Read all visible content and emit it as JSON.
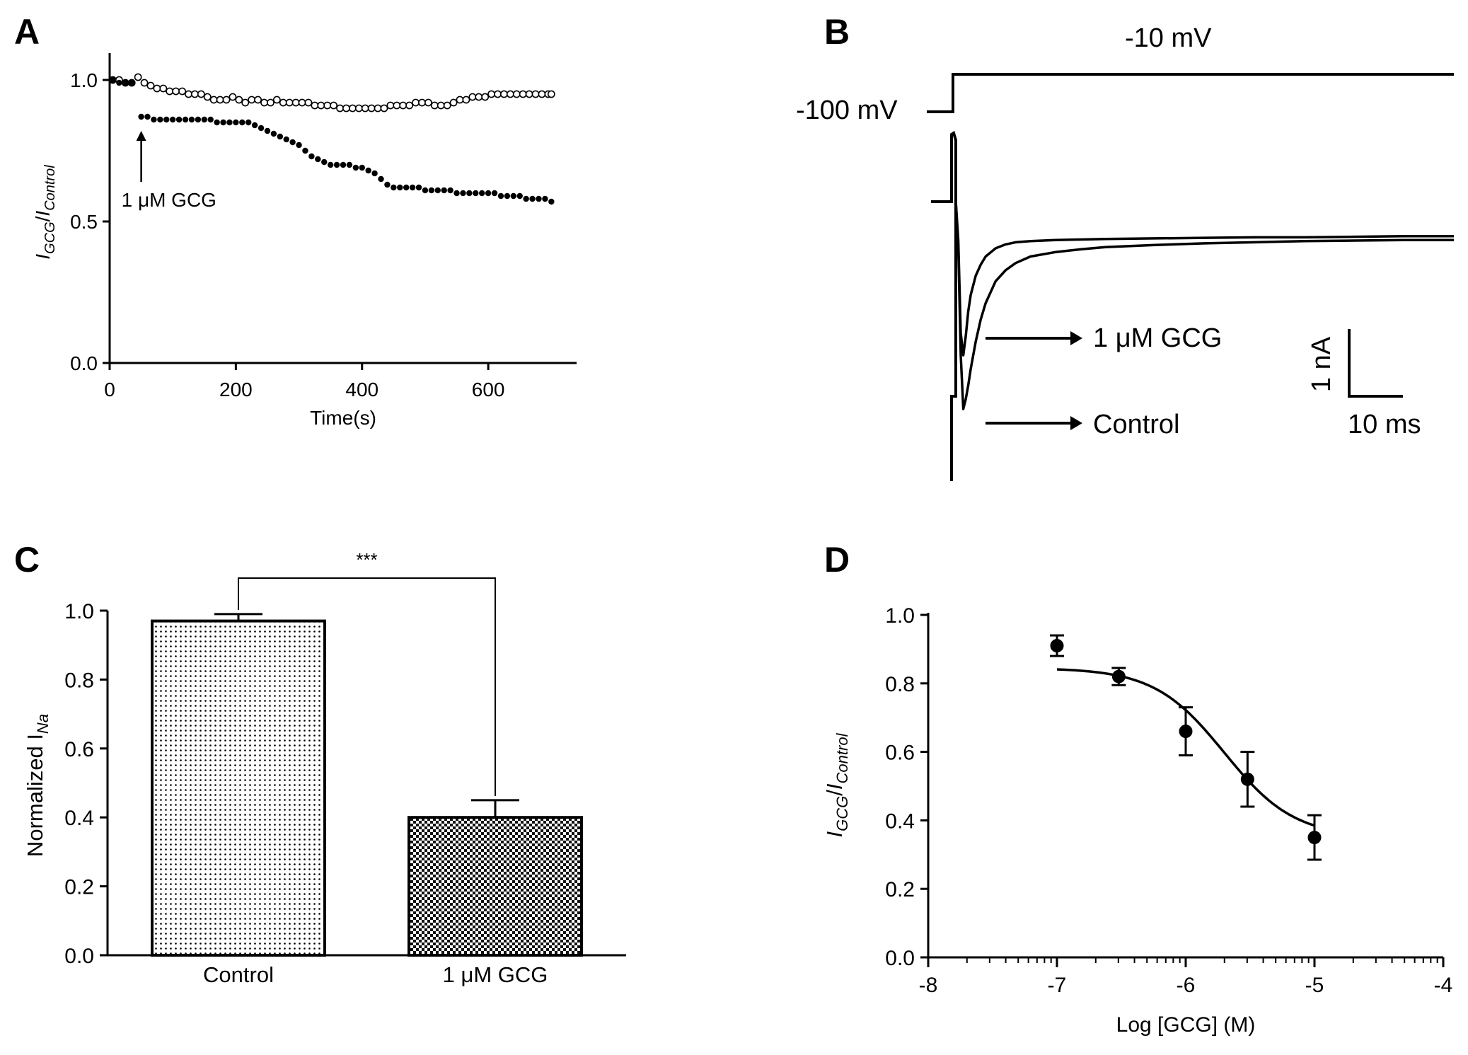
{
  "figure": {
    "panels": [
      {
        "letter": "A",
        "chart_data": {
          "type": "scatter",
          "xlabel": "Time(s)",
          "ylabel": {
            "base1": "I",
            "sub1": "GCG",
            "sep": "/",
            "base2": "I",
            "sub2": "Control"
          },
          "xlim": [
            0,
            740
          ],
          "ylim": [
            0,
            1.0
          ],
          "xticks": [
            0,
            200,
            400,
            600
          ],
          "xtick_labels": [
            "0",
            "200",
            "400",
            "600"
          ],
          "yticks": [
            0.0,
            0.5,
            1.0
          ],
          "ytick_labels": [
            "0.0",
            "0.5",
            "1.0"
          ],
          "annotation": {
            "label": "1 μM GCG",
            "x": 50,
            "y_head": 0.82,
            "y_tail": 0.64
          },
          "series": [
            {
              "marker": "open-circle",
              "x": [
                5,
                15,
                25,
                35,
                45,
                55,
                65,
                75,
                85,
                95,
                105,
                115,
                125,
                135,
                145,
                155,
                165,
                175,
                185,
                195,
                205,
                215,
                225,
                235,
                245,
                255,
                265,
                275,
                285,
                295,
                305,
                315,
                325,
                335,
                345,
                355,
                365,
                375,
                385,
                395,
                405,
                415,
                425,
                435,
                445,
                455,
                465,
                475,
                485,
                495,
                505,
                515,
                525,
                535,
                545,
                555,
                565,
                575,
                585,
                595,
                605,
                615,
                625,
                635,
                645,
                655,
                665,
                675,
                685,
                695,
                700
              ],
              "y": [
                1.0,
                1.0,
                0.99,
                0.99,
                1.01,
                0.99,
                0.98,
                0.97,
                0.97,
                0.96,
                0.96,
                0.96,
                0.95,
                0.95,
                0.95,
                0.94,
                0.93,
                0.93,
                0.93,
                0.94,
                0.93,
                0.92,
                0.93,
                0.93,
                0.92,
                0.92,
                0.93,
                0.92,
                0.92,
                0.92,
                0.92,
                0.92,
                0.91,
                0.91,
                0.91,
                0.91,
                0.9,
                0.9,
                0.9,
                0.9,
                0.9,
                0.9,
                0.9,
                0.9,
                0.91,
                0.91,
                0.91,
                0.91,
                0.92,
                0.92,
                0.92,
                0.91,
                0.91,
                0.91,
                0.92,
                0.93,
                0.93,
                0.94,
                0.94,
                0.94,
                0.95,
                0.95,
                0.95,
                0.95,
                0.95,
                0.95,
                0.95,
                0.95,
                0.95,
                0.95,
                0.95
              ]
            },
            {
              "marker": "filled-circle",
              "x": [
                5,
                15,
                25,
                35,
                50,
                60,
                70,
                80,
                90,
                100,
                110,
                120,
                130,
                140,
                150,
                160,
                170,
                180,
                190,
                200,
                210,
                220,
                230,
                240,
                250,
                260,
                270,
                280,
                290,
                300,
                310,
                320,
                330,
                340,
                350,
                360,
                370,
                380,
                390,
                400,
                410,
                420,
                430,
                440,
                450,
                460,
                470,
                480,
                490,
                500,
                510,
                520,
                530,
                540,
                550,
                560,
                570,
                580,
                590,
                600,
                610,
                620,
                630,
                640,
                650,
                660,
                670,
                680,
                690,
                700
              ],
              "y": [
                1.0,
                0.99,
                0.99,
                0.99,
                0.87,
                0.87,
                0.86,
                0.86,
                0.86,
                0.86,
                0.86,
                0.86,
                0.86,
                0.86,
                0.86,
                0.86,
                0.85,
                0.85,
                0.85,
                0.85,
                0.85,
                0.85,
                0.84,
                0.83,
                0.82,
                0.81,
                0.8,
                0.79,
                0.78,
                0.77,
                0.75,
                0.73,
                0.72,
                0.71,
                0.7,
                0.7,
                0.7,
                0.7,
                0.69,
                0.69,
                0.68,
                0.67,
                0.65,
                0.63,
                0.62,
                0.62,
                0.62,
                0.62,
                0.62,
                0.61,
                0.61,
                0.61,
                0.61,
                0.61,
                0.6,
                0.6,
                0.6,
                0.6,
                0.6,
                0.6,
                0.6,
                0.59,
                0.59,
                0.59,
                0.59,
                0.58,
                0.58,
                0.58,
                0.58,
                0.57
              ]
            }
          ]
        }
      },
      {
        "letter": "B",
        "chart_data": {
          "type": "line",
          "protocol": {
            "hold_label": "-100 mV",
            "step_label": "-10 mV"
          },
          "trace_labels": [
            "1 μM GCG",
            "Control"
          ],
          "scale_bar": {
            "current": "1 nA",
            "time": "10 ms"
          },
          "time_ms": [
            0,
            0.5,
            1,
            1.5,
            2,
            2.5,
            3,
            4,
            5,
            6,
            8,
            10,
            12,
            15,
            20,
            25,
            30,
            40,
            50,
            60,
            70,
            80,
            90,
            100
          ],
          "series": [
            {
              "name": "1 μM GCG",
              "current_nA": [
                0.0,
                -0.7,
                -2.4,
                -2.8,
                -2.45,
                -2.0,
                -1.7,
                -1.35,
                -1.15,
                -1.0,
                -0.85,
                -0.78,
                -0.74,
                -0.72,
                -0.7,
                -0.69,
                -0.68,
                -0.67,
                -0.66,
                -0.65,
                -0.65,
                -0.64,
                -0.63,
                -0.63
              ]
            },
            {
              "name": "Control",
              "current_nA": [
                0.0,
                -0.8,
                -2.8,
                -3.78,
                -3.6,
                -3.35,
                -3.05,
                -2.55,
                -2.15,
                -1.85,
                -1.45,
                -1.25,
                -1.12,
                -1.0,
                -0.92,
                -0.87,
                -0.83,
                -0.79,
                -0.76,
                -0.74,
                -0.72,
                -0.71,
                -0.7,
                -0.7
              ]
            }
          ]
        }
      },
      {
        "letter": "C",
        "chart_data": {
          "type": "bar",
          "categories": [
            "Control",
            "1 μM  GCG"
          ],
          "values": [
            0.97,
            0.4
          ],
          "errors": [
            0.02,
            0.05
          ],
          "ylabel": {
            "base": "Normalized I",
            "sub": "Na"
          },
          "ylim": [
            0,
            1.0
          ],
          "yticks": [
            0.0,
            0.2,
            0.4,
            0.6,
            0.8,
            1.0
          ],
          "ytick_labels": [
            "0.0",
            "0.2",
            "0.4",
            "0.6",
            "0.8",
            "1.0"
          ],
          "significance": "***"
        }
      },
      {
        "letter": "D",
        "chart_data": {
          "type": "scatter",
          "xlabel": "Log [GCG] (M)",
          "ylabel": {
            "base1": "I",
            "sub1": "GCG",
            "sep": "/",
            "base2": "I",
            "sub2": "Control"
          },
          "xlim": [
            -8,
            -4
          ],
          "ylim": [
            0,
            1.0
          ],
          "xscale": "log",
          "xticks": [
            -8,
            -7,
            -6,
            -5,
            -4
          ],
          "xtick_labels": [
            "-8",
            "-7",
            "-6",
            "-5",
            "-4"
          ],
          "yticks": [
            0.0,
            0.2,
            0.4,
            0.6,
            0.8,
            1.0
          ],
          "ytick_labels": [
            "0.0",
            "0.2",
            "0.4",
            "0.6",
            "0.8",
            "1.0"
          ],
          "points": {
            "x": [
              -7,
              -6.52,
              -6,
              -5.52,
              -5
            ],
            "y": [
              0.91,
              0.82,
              0.66,
              0.52,
              0.35
            ],
            "err": [
              0.03,
              0.025,
              0.07,
              0.08,
              0.065
            ]
          },
          "fit": {
            "top": 0.845,
            "bottom": 0.35,
            "logIC50": -5.7,
            "hill": 1.6,
            "x_from": -7,
            "x_to": -5
          }
        }
      }
    ]
  }
}
